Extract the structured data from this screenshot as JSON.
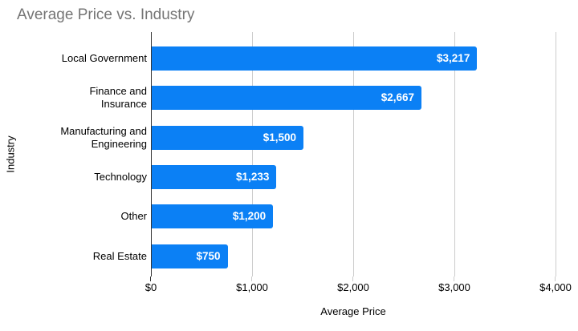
{
  "chart_data": {
    "type": "bar",
    "orientation": "horizontal",
    "title": "Average Price vs. Industry",
    "xlabel": "Average Price",
    "ylabel": "Industry",
    "categories": [
      "Local Government",
      "Finance and Insurance",
      "Manufacturing and Engineering",
      "Technology",
      "Other",
      "Real Estate"
    ],
    "category_lines": [
      [
        "Local Government"
      ],
      [
        "Finance and",
        "Insurance"
      ],
      [
        "Manufacturing and",
        "Engineering"
      ],
      [
        "Technology"
      ],
      [
        "Other"
      ],
      [
        "Real Estate"
      ]
    ],
    "values": [
      3217,
      2667,
      1500,
      1233,
      1200,
      750
    ],
    "value_labels": [
      "$3,217",
      "$2,667",
      "$1,500",
      "$1,233",
      "$1,200",
      "$750"
    ],
    "xlim": [
      0,
      4000
    ],
    "xtick_values": [
      0,
      1000,
      2000,
      3000,
      4000
    ],
    "xtick_labels": [
      "$0",
      "$1,000",
      "$2,000",
      "$3,000",
      "$4,000"
    ],
    "grid": true,
    "legend": "none",
    "colors": {
      "bar": "#0b80f5",
      "title_text": "#757575",
      "axis_line": "#333333",
      "gridline": "#cccccc",
      "tick_text": "#000000",
      "value_label_text": "#ffffff"
    }
  }
}
